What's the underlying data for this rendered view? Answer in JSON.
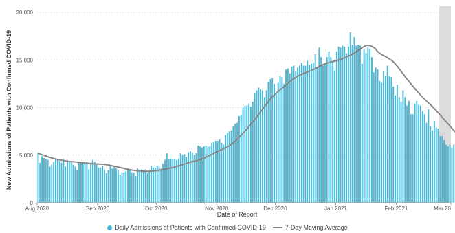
{
  "chart_data": {
    "type": "bar",
    "xlabel": "Date of Report",
    "ylabel": "New Admissions of Patients with Confirmed COVID-19",
    "ylim": [
      0,
      20000
    ],
    "y_ticks": [
      "0",
      "5,000",
      "10,000",
      "15,000",
      "20,000"
    ],
    "x_ticks": [
      "Aug 2020",
      "Sep 2020",
      "Oct 2020",
      "Nov 2020",
      "Dec 2020",
      "Jan 2021",
      "Feb 2021",
      "Mar 20"
    ],
    "x_start": "2020-08-01",
    "x_end": "2021-03-01",
    "shaded_from": "2021-02-23",
    "grid": true,
    "legend_position": "bottom",
    "series": [
      {
        "name": "Daily Admissions of Patients with Confirmed COVID-19",
        "type": "bar",
        "color": "#4BB8D6",
        "values": [
          5300,
          4200,
          4900,
          4700,
          4600,
          4500,
          3800,
          4000,
          4300,
          4600,
          4500,
          4400,
          4200,
          4600,
          3800,
          4300,
          4400,
          4300,
          4000,
          3800,
          3400,
          4300,
          4300,
          4200,
          4100,
          4300,
          3500,
          4100,
          4500,
          4300,
          4000,
          3700,
          3700,
          3900,
          3500,
          3100,
          3400,
          3900,
          3600,
          3800,
          3600,
          3400,
          2900,
          3200,
          3200,
          3300,
          3500,
          3400,
          3200,
          3200,
          2800,
          3600,
          3400,
          3500,
          3400,
          3500,
          3100,
          3300,
          3900,
          3700,
          3700,
          3900,
          3800,
          3600,
          4100,
          4500,
          5200,
          4600,
          4600,
          4600,
          4600,
          4500,
          4600,
          5200,
          5000,
          5100,
          4800,
          5300,
          5400,
          5300,
          5000,
          5200,
          6000,
          5900,
          5800,
          5900,
          6000,
          5900,
          5900,
          6300,
          6400,
          6500,
          6500,
          6700,
          6300,
          6100,
          7100,
          7300,
          7500,
          7600,
          8000,
          8300,
          8400,
          9100,
          9200,
          10000,
          10200,
          10200,
          10400,
          10100,
          10600,
          11500,
          11800,
          12100,
          11900,
          11800,
          11100,
          11800,
          12700,
          13000,
          13100,
          12500,
          11600,
          12600,
          13300,
          13200,
          12500,
          14000,
          14100,
          13600,
          14300,
          14400,
          13800,
          14200,
          14400,
          14700,
          14400,
          14400,
          14900,
          14500,
          14600,
          14700,
          15600,
          14200,
          16300,
          15300,
          14400,
          14600,
          15300,
          15900,
          15300,
          14900,
          13900,
          15900,
          16400,
          16300,
          16500,
          16400,
          15700,
          16400,
          17900,
          16600,
          17400,
          16500,
          16600,
          16500,
          14600,
          16100,
          15700,
          16300,
          16100,
          15300,
          13700,
          14200,
          14000,
          12800,
          12600,
          13800,
          13300,
          14400,
          13300,
          13200,
          12200,
          11300,
          12400,
          11100,
          10600,
          11800,
          11100,
          10200,
          10700,
          9300,
          9300,
          10400,
          10700,
          10300,
          10200,
          9600,
          9300,
          8400,
          9800,
          8000,
          7600,
          8600,
          7900,
          7800,
          7000,
          7000,
          6600,
          6100,
          5900,
          6100,
          5800,
          6100,
          5500,
          6200,
          6500,
          6300,
          6300,
          5700,
          6300,
          5300,
          5300,
          4800,
          4600,
          5400
        ]
      },
      {
        "name": "7-Day Moving Average",
        "type": "line",
        "color": "#888888",
        "points": [
          [
            0,
            5200
          ],
          [
            7,
            4700
          ],
          [
            14,
            4400
          ],
          [
            21,
            4250
          ],
          [
            28,
            4100
          ],
          [
            35,
            4000
          ],
          [
            42,
            3700
          ],
          [
            49,
            3400
          ],
          [
            56,
            3300
          ],
          [
            63,
            3450
          ],
          [
            70,
            3750
          ],
          [
            77,
            4200
          ],
          [
            84,
            4600
          ],
          [
            91,
            5300
          ],
          [
            98,
            6000
          ],
          [
            105,
            7300
          ],
          [
            112,
            9000
          ],
          [
            119,
            10900
          ],
          [
            126,
            12200
          ],
          [
            133,
            13300
          ],
          [
            140,
            13900
          ],
          [
            147,
            14600
          ],
          [
            154,
            15000
          ],
          [
            161,
            15600
          ],
          [
            168,
            16500
          ],
          [
            172,
            16300
          ],
          [
            175,
            15700
          ],
          [
            182,
            14800
          ],
          [
            189,
            13000
          ],
          [
            196,
            11300
          ],
          [
            203,
            9900
          ],
          [
            210,
            8300
          ],
          [
            217,
            6800
          ],
          [
            224,
            6500
          ],
          [
            228,
            6300
          ],
          [
            231,
            6000
          ],
          [
            234,
            5500
          ]
        ]
      }
    ]
  }
}
